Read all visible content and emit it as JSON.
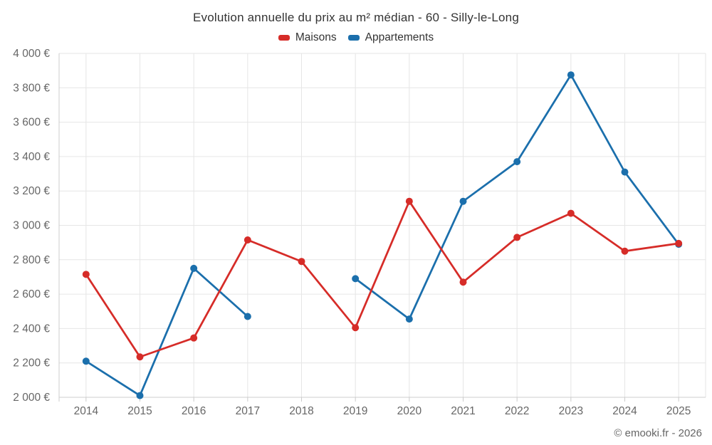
{
  "title": "Evolution annuelle du prix au m² médian - 60 - Silly-le-Long",
  "footer": {
    "credits": "© emooki.fr - 2026"
  },
  "colors": {
    "maisons_red": "#d62c28",
    "appartements_blue": "#1b6fac",
    "gridline": "#e6e6e6",
    "axis_line": "#cccccc",
    "axis_text": "#666666",
    "title_text": "#333333"
  },
  "chart_data": {
    "type": "line",
    "title": "Evolution annuelle du prix au m² médian - 60 - Silly-le-Long",
    "categories": [
      "2014",
      "2015",
      "2016",
      "2017",
      "2018",
      "2019",
      "2020",
      "2021",
      "2022",
      "2023",
      "2024",
      "2025"
    ],
    "series": [
      {
        "name": "Maisons",
        "color": "#d62c28",
        "values": [
          2715,
          2235,
          2345,
          2915,
          2790,
          2405,
          3140,
          2670,
          2930,
          3070,
          2850,
          2895
        ]
      },
      {
        "name": "Appartements",
        "color": "#1b6fac",
        "values": [
          2210,
          2010,
          2750,
          2470,
          null,
          2690,
          2455,
          3140,
          3370,
          3875,
          3310,
          2890
        ]
      }
    ],
    "xlabel": "",
    "ylabel": "",
    "ylim": [
      2000,
      4000
    ],
    "ytick_step": 200,
    "ytick_labels": [
      "2 000 €",
      "2 200 €",
      "2 400 €",
      "2 600 €",
      "2 800 €",
      "3 000 €",
      "3 200 €",
      "3 400 €",
      "3 600 €",
      "3 800 €",
      "4 000 €"
    ],
    "grid": true,
    "legend_position": "top",
    "note": "Appartements has no data point for 2018 (line gap)"
  }
}
